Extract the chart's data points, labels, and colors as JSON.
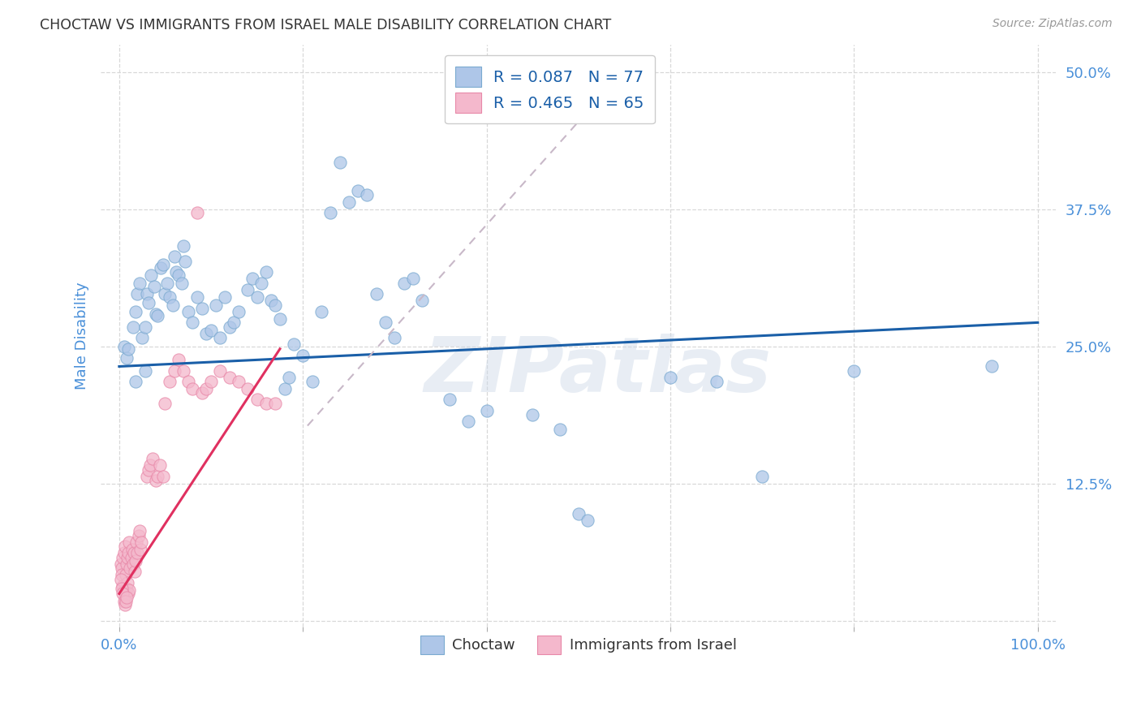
{
  "title": "CHOCTAW VS IMMIGRANTS FROM ISRAEL MALE DISABILITY CORRELATION CHART",
  "source": "Source: ZipAtlas.com",
  "ylabel": "Male Disability",
  "yticks": [
    0.0,
    0.125,
    0.25,
    0.375,
    0.5
  ],
  "ytick_labels": [
    "",
    "12.5%",
    "25.0%",
    "37.5%",
    "50.0%"
  ],
  "watermark": "ZIPatlas",
  "legend_blue_r": "R = 0.087",
  "legend_blue_n": "N = 77",
  "legend_pink_r": "R = 0.465",
  "legend_pink_n": "N = 65",
  "blue_color": "#aec6e8",
  "pink_color": "#f4b8cc",
  "blue_edge": "#7aaad0",
  "pink_edge": "#e888a8",
  "trendline_blue_color": "#1a5fa8",
  "trendline_pink_color": "#e03060",
  "trendline_dashed_color": "#c8b8c8",
  "blue_dots": [
    [
      0.005,
      0.25
    ],
    [
      0.008,
      0.24
    ],
    [
      0.01,
      0.248
    ],
    [
      0.015,
      0.268
    ],
    [
      0.018,
      0.282
    ],
    [
      0.02,
      0.298
    ],
    [
      0.022,
      0.308
    ],
    [
      0.025,
      0.258
    ],
    [
      0.028,
      0.268
    ],
    [
      0.03,
      0.298
    ],
    [
      0.032,
      0.29
    ],
    [
      0.035,
      0.315
    ],
    [
      0.038,
      0.305
    ],
    [
      0.04,
      0.28
    ],
    [
      0.042,
      0.278
    ],
    [
      0.045,
      0.322
    ],
    [
      0.048,
      0.325
    ],
    [
      0.05,
      0.298
    ],
    [
      0.052,
      0.308
    ],
    [
      0.055,
      0.295
    ],
    [
      0.058,
      0.288
    ],
    [
      0.06,
      0.332
    ],
    [
      0.062,
      0.318
    ],
    [
      0.065,
      0.315
    ],
    [
      0.068,
      0.308
    ],
    [
      0.07,
      0.342
    ],
    [
      0.072,
      0.328
    ],
    [
      0.075,
      0.282
    ],
    [
      0.08,
      0.272
    ],
    [
      0.085,
      0.295
    ],
    [
      0.09,
      0.285
    ],
    [
      0.095,
      0.262
    ],
    [
      0.1,
      0.265
    ],
    [
      0.105,
      0.288
    ],
    [
      0.11,
      0.258
    ],
    [
      0.115,
      0.295
    ],
    [
      0.12,
      0.268
    ],
    [
      0.125,
      0.272
    ],
    [
      0.13,
      0.282
    ],
    [
      0.14,
      0.302
    ],
    [
      0.145,
      0.312
    ],
    [
      0.15,
      0.295
    ],
    [
      0.155,
      0.308
    ],
    [
      0.16,
      0.318
    ],
    [
      0.165,
      0.292
    ],
    [
      0.17,
      0.288
    ],
    [
      0.175,
      0.275
    ],
    [
      0.18,
      0.212
    ],
    [
      0.185,
      0.222
    ],
    [
      0.19,
      0.252
    ],
    [
      0.2,
      0.242
    ],
    [
      0.21,
      0.218
    ],
    [
      0.22,
      0.282
    ],
    [
      0.23,
      0.372
    ],
    [
      0.24,
      0.418
    ],
    [
      0.25,
      0.382
    ],
    [
      0.26,
      0.392
    ],
    [
      0.27,
      0.388
    ],
    [
      0.28,
      0.298
    ],
    [
      0.29,
      0.272
    ],
    [
      0.3,
      0.258
    ],
    [
      0.31,
      0.308
    ],
    [
      0.32,
      0.312
    ],
    [
      0.33,
      0.292
    ],
    [
      0.36,
      0.202
    ],
    [
      0.38,
      0.182
    ],
    [
      0.4,
      0.192
    ],
    [
      0.45,
      0.188
    ],
    [
      0.48,
      0.175
    ],
    [
      0.5,
      0.098
    ],
    [
      0.51,
      0.092
    ],
    [
      0.6,
      0.222
    ],
    [
      0.65,
      0.218
    ],
    [
      0.7,
      0.132
    ],
    [
      0.8,
      0.228
    ],
    [
      0.95,
      0.232
    ],
    [
      0.018,
      0.218
    ],
    [
      0.028,
      0.228
    ]
  ],
  "pink_dots": [
    [
      0.002,
      0.052
    ],
    [
      0.003,
      0.048
    ],
    [
      0.003,
      0.042
    ],
    [
      0.004,
      0.058
    ],
    [
      0.004,
      0.032
    ],
    [
      0.005,
      0.062
    ],
    [
      0.005,
      0.028
    ],
    [
      0.006,
      0.068
    ],
    [
      0.006,
      0.022
    ],
    [
      0.007,
      0.042
    ],
    [
      0.007,
      0.025
    ],
    [
      0.008,
      0.052
    ],
    [
      0.008,
      0.03
    ],
    [
      0.009,
      0.058
    ],
    [
      0.009,
      0.035
    ],
    [
      0.01,
      0.062
    ],
    [
      0.01,
      0.025
    ],
    [
      0.011,
      0.072
    ],
    [
      0.011,
      0.028
    ],
    [
      0.012,
      0.048
    ],
    [
      0.013,
      0.058
    ],
    [
      0.014,
      0.065
    ],
    [
      0.015,
      0.052
    ],
    [
      0.016,
      0.062
    ],
    [
      0.017,
      0.045
    ],
    [
      0.018,
      0.055
    ],
    [
      0.019,
      0.072
    ],
    [
      0.02,
      0.062
    ],
    [
      0.021,
      0.078
    ],
    [
      0.022,
      0.082
    ],
    [
      0.023,
      0.065
    ],
    [
      0.024,
      0.072
    ],
    [
      0.03,
      0.132
    ],
    [
      0.032,
      0.138
    ],
    [
      0.034,
      0.142
    ],
    [
      0.036,
      0.148
    ],
    [
      0.04,
      0.128
    ],
    [
      0.042,
      0.132
    ],
    [
      0.044,
      0.142
    ],
    [
      0.048,
      0.132
    ],
    [
      0.05,
      0.198
    ],
    [
      0.055,
      0.218
    ],
    [
      0.06,
      0.228
    ],
    [
      0.065,
      0.238
    ],
    [
      0.07,
      0.228
    ],
    [
      0.075,
      0.218
    ],
    [
      0.08,
      0.212
    ],
    [
      0.085,
      0.372
    ],
    [
      0.09,
      0.208
    ],
    [
      0.095,
      0.212
    ],
    [
      0.1,
      0.218
    ],
    [
      0.11,
      0.228
    ],
    [
      0.12,
      0.222
    ],
    [
      0.13,
      0.218
    ],
    [
      0.14,
      0.212
    ],
    [
      0.15,
      0.202
    ],
    [
      0.16,
      0.198
    ],
    [
      0.17,
      0.198
    ],
    [
      0.002,
      0.038
    ],
    [
      0.003,
      0.03
    ],
    [
      0.004,
      0.025
    ],
    [
      0.005,
      0.018
    ],
    [
      0.006,
      0.015
    ],
    [
      0.007,
      0.018
    ],
    [
      0.008,
      0.022
    ]
  ],
  "blue_trendline_x": [
    0.0,
    1.0
  ],
  "blue_trendline_y": [
    0.232,
    0.272
  ],
  "pink_trendline_x": [
    0.0,
    0.175
  ],
  "pink_trendline_y": [
    0.025,
    0.248
  ],
  "dashed_line_x": [
    0.205,
    0.5
  ],
  "dashed_line_y": [
    0.178,
    0.455
  ],
  "xlim": [
    -0.02,
    1.02
  ],
  "ylim": [
    -0.005,
    0.525
  ],
  "background_color": "#ffffff",
  "grid_color": "#d8d8d8",
  "title_color": "#333333",
  "axis_label_color": "#4a90d9",
  "source_color": "#999999",
  "legend_text_color": "#1a5fa8"
}
